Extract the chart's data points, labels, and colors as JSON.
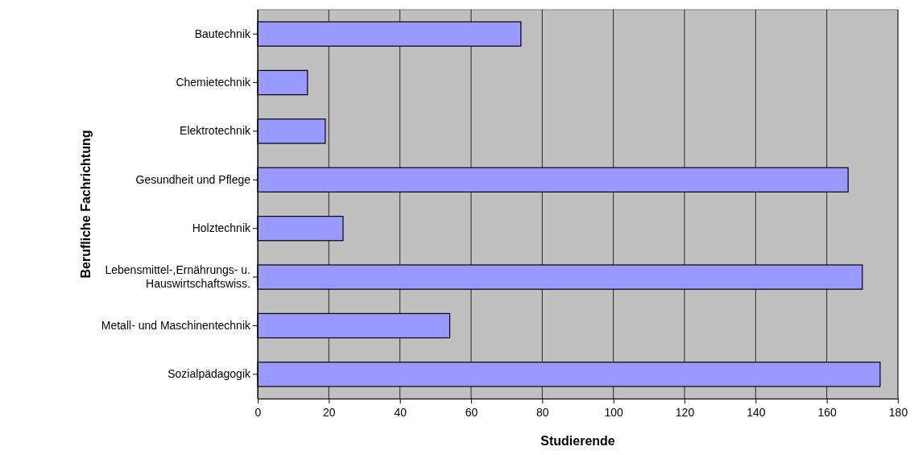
{
  "chart_data": {
    "type": "bar",
    "orientation": "horizontal",
    "xlabel": "Studierende",
    "ylabel": "Berufliche Fachrichtung",
    "categories": [
      "Bautechnik",
      "Chemietechnik",
      "Elektrotechnik",
      "Gesundheit und Pflege",
      "Holztechnik",
      "Lebensmittel-,Ernährungs- u. Hauswirtschaftswiss.",
      "Metall- und Maschinentechnik",
      "Sozialpädagogik"
    ],
    "values": [
      74,
      14,
      19,
      166,
      24,
      170,
      54,
      175
    ],
    "color": "#9999ff",
    "xlim": [
      0,
      180
    ],
    "xticks": [
      0,
      20,
      40,
      60,
      80,
      100,
      120,
      140,
      160,
      180
    ],
    "grid": "x"
  }
}
